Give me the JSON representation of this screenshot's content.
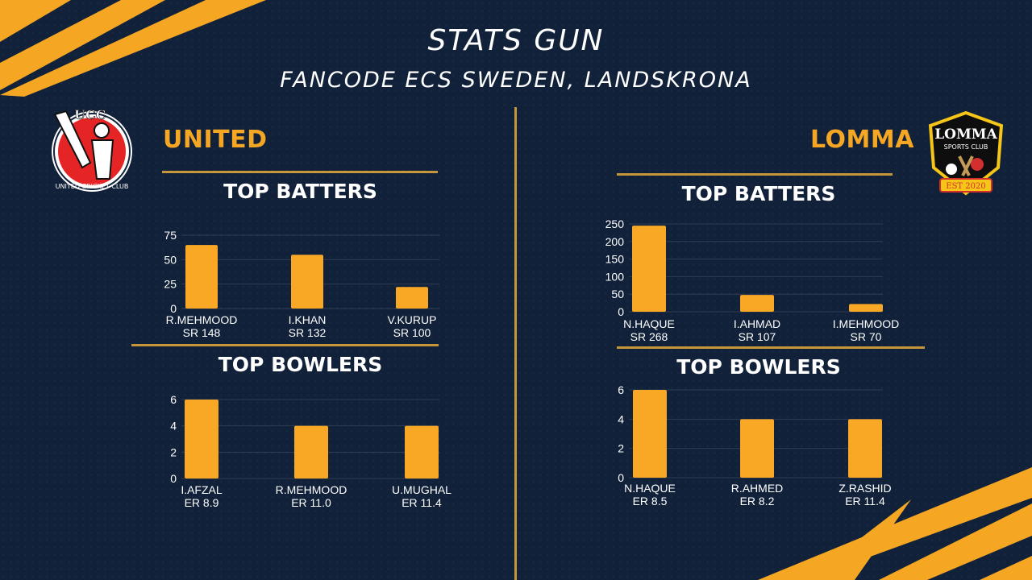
{
  "header": {
    "title": "STATS GUN",
    "subtitle": "FANCODE ECS SWEDEN, LANDSKRONA"
  },
  "colors": {
    "accent": "#f5a623",
    "background": "#11213a",
    "rule": "#c8963a",
    "bar": "#f9a825"
  },
  "teams": {
    "left": {
      "name": "UNITED",
      "logo": {
        "letters": "UCC",
        "ring_text": "UNITED CRICKET CLUB"
      }
    },
    "right": {
      "name": "LOMMA",
      "logo": {
        "line1": "LOMMA",
        "line2": "SPORTS CLUB",
        "badge": "EST 2020"
      }
    }
  },
  "sections": {
    "batters_title": "TOP BATTERS",
    "bowlers_title": "TOP BOWLERS"
  },
  "chart_data": [
    {
      "id": "united-batters",
      "type": "bar",
      "title": "TOP BATTERS",
      "categories": [
        "R.MEHMOOD",
        "I.KHAN",
        "V.KURUP"
      ],
      "sublabels": [
        "SR 148",
        "SR 132",
        "SR 100"
      ],
      "values": [
        65,
        55,
        22
      ],
      "ylim": [
        0,
        75
      ],
      "yticks": [
        0,
        25,
        50,
        75
      ],
      "grid": true
    },
    {
      "id": "united-bowlers",
      "type": "bar",
      "title": "TOP BOWLERS",
      "categories": [
        "I.AFZAL",
        "R.MEHMOOD",
        "U.MUGHAL"
      ],
      "sublabels": [
        "ER 8.9",
        "ER 11.0",
        "ER 11.4"
      ],
      "values": [
        6,
        4,
        4
      ],
      "ylim": [
        0,
        6
      ],
      "yticks": [
        0,
        2,
        4,
        6
      ],
      "grid": true
    },
    {
      "id": "lomma-batters",
      "type": "bar",
      "title": "TOP BATTERS",
      "categories": [
        "N.HAQUE",
        "I.AHMAD",
        "I.MEHMOOD"
      ],
      "sublabels": [
        "SR 268",
        "SR 107",
        "SR 70"
      ],
      "values": [
        245,
        48,
        22
      ],
      "ylim": [
        0,
        250
      ],
      "yticks": [
        0,
        50,
        100,
        150,
        200,
        250
      ],
      "grid": true
    },
    {
      "id": "lomma-bowlers",
      "type": "bar",
      "title": "TOP BOWLERS",
      "categories": [
        "N.HAQUE",
        "R.AHMED",
        "Z.RASHID"
      ],
      "sublabels": [
        "ER 8.5",
        "ER 8.2",
        "ER 11.4"
      ],
      "values": [
        6,
        4,
        4
      ],
      "ylim": [
        0,
        6
      ],
      "yticks": [
        0,
        2,
        4,
        6
      ],
      "grid": true
    }
  ]
}
